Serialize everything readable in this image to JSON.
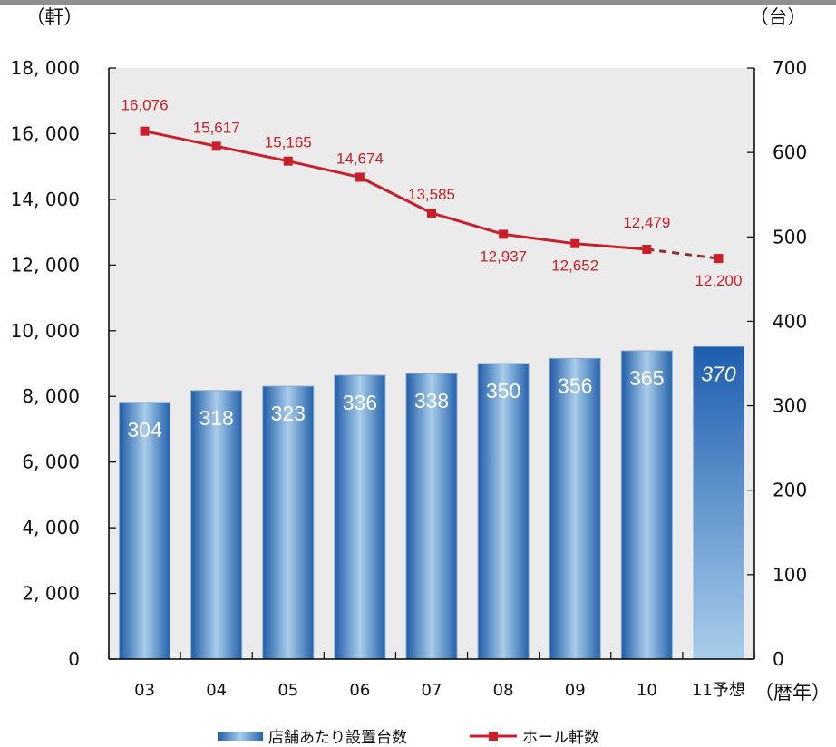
{
  "chart_data": {
    "type": "bar",
    "categories": [
      "03",
      "04",
      "05",
      "06",
      "07",
      "08",
      "09",
      "10",
      "11予想"
    ],
    "xlabel": "（暦年）",
    "y_left": {
      "unit_label": "（軒）",
      "range": [
        0,
        18000
      ],
      "ticks": [
        "0",
        "2, 000",
        "4, 000",
        "6, 000",
        "8, 000",
        "10, 000",
        "12, 000",
        "14, 000",
        "16, 000",
        "18, 000"
      ]
    },
    "y_right": {
      "unit_label": "（台）",
      "range": [
        0,
        700
      ],
      "ticks": [
        "0",
        "100",
        "200",
        "300",
        "400",
        "500",
        "600",
        "700"
      ]
    },
    "series": [
      {
        "name": "店舗あたり設置台数",
        "type": "bar",
        "axis": "right",
        "values": [
          304,
          318,
          323,
          336,
          338,
          350,
          356,
          365,
          370
        ],
        "labels": [
          "304",
          "318",
          "323",
          "336",
          "338",
          "350",
          "356",
          "365",
          "370"
        ],
        "forecast_from_index": 8,
        "color": "#2e6db4"
      },
      {
        "name": "ホール軒数",
        "type": "line",
        "axis": "left",
        "values": [
          16076,
          15617,
          15165,
          14674,
          13585,
          12937,
          12652,
          12479,
          12200
        ],
        "labels": [
          "16,076",
          "15,617",
          "15,165",
          "14,674",
          "13,585",
          "12,937",
          "12,652",
          "12,479",
          "12,200"
        ],
        "forecast_from_index": 8,
        "color": "#c8202a"
      }
    ],
    "legend_position": "bottom",
    "grid": false,
    "plot_background": "#ebebeb"
  }
}
